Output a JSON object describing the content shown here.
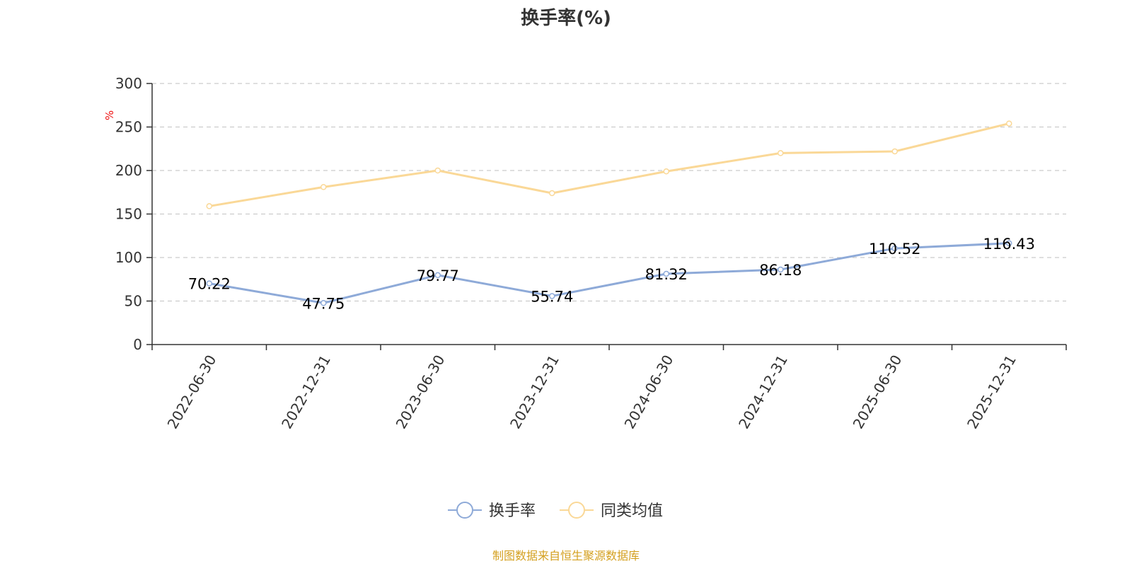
{
  "chart_data": {
    "type": "line",
    "title": "换手率(%)",
    "ylabel": "%",
    "ylim": [
      0,
      300
    ],
    "yticks": [
      0,
      50,
      100,
      150,
      200,
      250,
      300
    ],
    "grid": true,
    "legend_position": "bottom",
    "categories": [
      "2022-06-30",
      "2022-12-31",
      "2023-06-30",
      "2023-12-31",
      "2024-06-30",
      "2024-12-31",
      "2025-06-30",
      "2025-12-31"
    ],
    "series": [
      {
        "name": "换手率",
        "color": "#8eaad8",
        "show_labels": true,
        "values": [
          70.22,
          47.75,
          79.77,
          55.74,
          81.32,
          86.18,
          110.52,
          116.43
        ],
        "labels": [
          "70.22",
          "47.75",
          "79.77",
          "55.74",
          "81.32",
          "86.18",
          "110.52",
          "116.43"
        ]
      },
      {
        "name": "同类均值",
        "color": "#fad897",
        "show_labels": false,
        "values": [
          159,
          181,
          200,
          174,
          199,
          220,
          222,
          254
        ]
      }
    ]
  },
  "footer": {
    "source": "制图数据来自恒生聚源数据库"
  }
}
